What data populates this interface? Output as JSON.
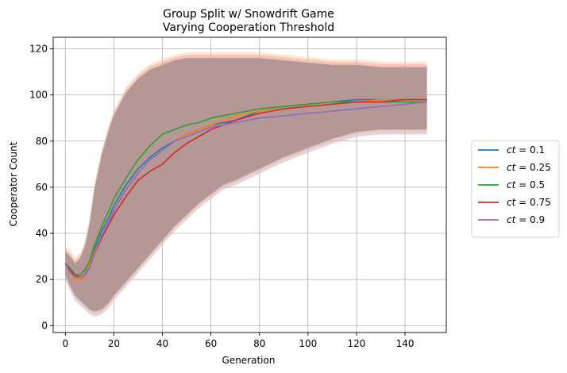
{
  "chart_data": {
    "type": "line",
    "title_line1": "Group Split w/ Snowdrift Game",
    "title_line2": "Varying Cooperation Threshold",
    "xlabel": "Generation",
    "ylabel": "Cooperator Count",
    "xlim": [
      -5,
      157
    ],
    "ylim": [
      -3,
      125
    ],
    "xticks": [
      0,
      20,
      40,
      60,
      80,
      100,
      120,
      140
    ],
    "yticks": [
      0,
      20,
      40,
      60,
      80,
      100,
      120
    ],
    "grid": true,
    "legend_position": "right",
    "x": [
      0,
      2,
      4,
      6,
      8,
      10,
      12,
      15,
      18,
      20,
      25,
      30,
      35,
      40,
      45,
      50,
      55,
      60,
      65,
      70,
      80,
      90,
      100,
      110,
      120,
      130,
      140,
      149
    ],
    "series": [
      {
        "name_prefix": "ct",
        "name_value": "= 0.1",
        "color": "#1f77b4",
        "values": [
          27,
          24,
          21,
          21,
          22,
          26,
          33,
          41,
          47,
          52,
          61,
          68,
          73,
          77,
          80,
          83,
          85,
          87,
          88,
          89,
          93,
          95,
          96,
          97,
          98,
          98,
          98,
          98
        ]
      },
      {
        "name_prefix": "ct",
        "name_value": "= 0.25",
        "color": "#ff7f0e",
        "values": [
          27,
          24,
          20,
          20,
          21,
          26,
          32,
          39,
          45,
          50,
          59,
          66,
          72,
          76,
          80,
          83,
          85,
          87,
          89,
          91,
          93,
          95,
          96,
          97,
          97,
          98,
          98,
          98
        ]
      },
      {
        "name_prefix": "ct",
        "name_value": "= 0.5",
        "color": "#2ca02c",
        "values": [
          27,
          25,
          22,
          22,
          24,
          28,
          35,
          43,
          50,
          55,
          64,
          72,
          78,
          83,
          85,
          87,
          88,
          90,
          91,
          92,
          94,
          95,
          96,
          97,
          97,
          97,
          97,
          97
        ]
      },
      {
        "name_prefix": "ct",
        "name_value": "= 0.75",
        "color": "#d62728",
        "values": [
          27,
          24,
          22,
          21,
          22,
          25,
          31,
          38,
          44,
          48,
          56,
          63,
          67,
          70,
          75,
          79,
          82,
          85,
          87,
          89,
          92,
          94,
          95,
          96,
          97,
          97,
          98,
          98
        ]
      },
      {
        "name_prefix": "ct",
        "name_value": "= 0.9",
        "color": "#9467bd",
        "values": [
          27,
          23,
          21,
          21,
          22,
          25,
          31,
          39,
          45,
          50,
          59,
          66,
          72,
          76,
          80,
          82,
          84,
          86,
          87,
          88,
          90,
          91,
          92,
          93,
          94,
          95,
          96,
          97
        ]
      }
    ],
    "band_upper": [
      33,
      31,
      28,
      30,
      35,
      45,
      60,
      75,
      86,
      92,
      102,
      108,
      112,
      114,
      116,
      117,
      117,
      117,
      117,
      117,
      117,
      116,
      115,
      114,
      114,
      113,
      113,
      113
    ],
    "band_lower": [
      21,
      16,
      12,
      10,
      8,
      6,
      5,
      6,
      9,
      12,
      18,
      24,
      30,
      36,
      42,
      47,
      52,
      56,
      60,
      62,
      67,
      72,
      76,
      80,
      83,
      84,
      84,
      84
    ],
    "band_color": "#a88c8a"
  }
}
